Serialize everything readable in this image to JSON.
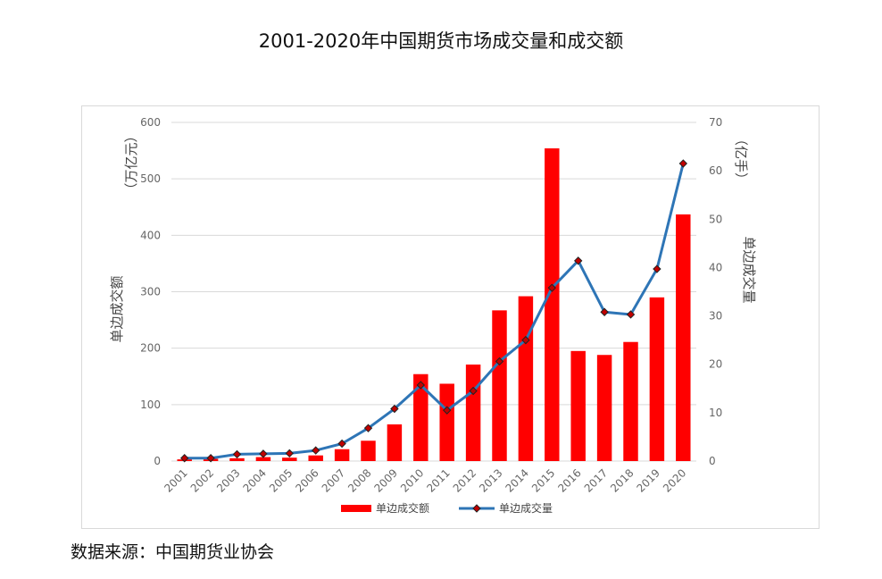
{
  "chart_data": {
    "type": "bar+line",
    "title": "2001-2020年中国期货市场成交量和成交额",
    "categories": [
      "2001",
      "2002",
      "2003",
      "2004",
      "2005",
      "2006",
      "2007",
      "2008",
      "2009",
      "2010",
      "2011",
      "2012",
      "2013",
      "2014",
      "2015",
      "2016",
      "2017",
      "2018",
      "2019",
      "2020"
    ],
    "series": [
      {
        "name": "单边成交额",
        "type": "bar",
        "axis": "left",
        "color": "#ff0000",
        "values": [
          3,
          4,
          5,
          7,
          6,
          10,
          21,
          36,
          65,
          154,
          137,
          171,
          267,
          292,
          554,
          195,
          188,
          211,
          290,
          437
        ]
      },
      {
        "name": "单边成交量",
        "type": "line",
        "axis": "right",
        "color": "#2e75b6",
        "marker_fill": "#c00000",
        "values": [
          0.6,
          0.6,
          1.4,
          1.5,
          1.6,
          2.2,
          3.6,
          6.8,
          10.8,
          15.7,
          10.5,
          14.5,
          20.6,
          25.0,
          35.8,
          41.4,
          30.8,
          30.3,
          39.7,
          61.5
        ]
      }
    ],
    "yaxis_left": {
      "label": "单边成交额",
      "unit": "（万亿元）",
      "ylim": [
        0,
        600
      ],
      "ticks": [
        "0",
        "100",
        "200",
        "300",
        "400",
        "500",
        "600"
      ]
    },
    "yaxis_right": {
      "label": "单边成交量",
      "unit": "（亿手）",
      "ylim": [
        0,
        70
      ],
      "ticks": [
        "0",
        "10",
        "20",
        "30",
        "40",
        "50",
        "60",
        "70"
      ]
    },
    "grid": true,
    "legend_position": "bottom"
  },
  "source_note": "数据来源：中国期货业协会"
}
